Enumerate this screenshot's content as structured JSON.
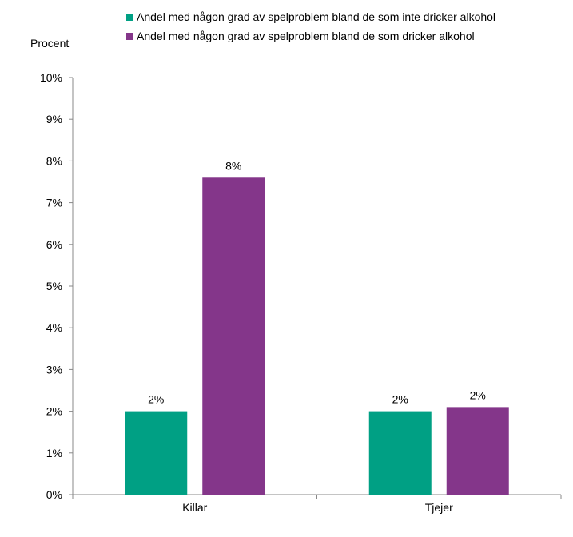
{
  "chart_data": {
    "type": "bar",
    "ylabel": "Procent",
    "ylim": [
      0,
      10
    ],
    "yticks": [
      "0%",
      "1%",
      "2%",
      "3%",
      "4%",
      "5%",
      "6%",
      "7%",
      "8%",
      "9%",
      "10%"
    ],
    "categories": [
      "Killar",
      "Tjejer"
    ],
    "series": [
      {
        "name": "Andel med någon grad av spelproblem bland de som inte dricker alkohol",
        "color": "#00A084",
        "values": [
          2.0,
          2.0
        ],
        "labels": [
          "2%",
          "2%"
        ]
      },
      {
        "name": "Andel med någon grad av spelproblem bland de som dricker alkohol",
        "color": "#84368A",
        "values": [
          7.6,
          2.1
        ],
        "labels": [
          "8%",
          "2%"
        ]
      }
    ],
    "legend_position": "top",
    "grid": false
  }
}
